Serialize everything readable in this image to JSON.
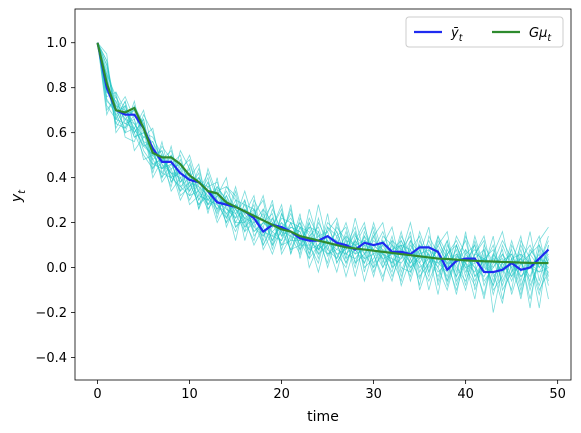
{
  "chart_data": {
    "type": "line",
    "xlabel": "time",
    "ylabel": "y_t",
    "ylabel_display": "y",
    "ylabel_sub": "t",
    "xlim": [
      -2.45,
      51.45
    ],
    "ylim": [
      -0.5,
      1.15
    ],
    "xticks": [
      0,
      10,
      20,
      30,
      40,
      50
    ],
    "yticks": [
      -0.4,
      -0.2,
      0.0,
      0.2,
      0.4,
      0.6,
      0.8,
      1.0
    ],
    "xtick_labels": [
      "0",
      "10",
      "20",
      "30",
      "40",
      "50"
    ],
    "ytick_labels": [
      "−0.4",
      "−0.2",
      "0.0",
      "0.2",
      "0.4",
      "0.6",
      "0.8",
      "1.0"
    ],
    "grid": false,
    "legend_position": "top-right",
    "x": [
      0,
      1,
      2,
      3,
      4,
      5,
      6,
      7,
      8,
      9,
      10,
      11,
      12,
      13,
      14,
      15,
      16,
      17,
      18,
      19,
      20,
      21,
      22,
      23,
      24,
      25,
      26,
      27,
      28,
      29,
      30,
      31,
      32,
      33,
      34,
      35,
      36,
      37,
      38,
      39,
      40,
      41,
      42,
      43,
      44,
      45,
      46,
      47,
      48,
      49
    ],
    "series": [
      {
        "name": "ȳ_t",
        "legend_main": "ȳ",
        "legend_sub": "t",
        "color": "#1f2bf0",
        "values": [
          1.0,
          0.8,
          0.7,
          0.68,
          0.68,
          0.62,
          0.53,
          0.47,
          0.47,
          0.42,
          0.39,
          0.38,
          0.34,
          0.29,
          0.28,
          0.27,
          0.25,
          0.22,
          0.16,
          0.19,
          0.18,
          0.16,
          0.13,
          0.12,
          0.12,
          0.14,
          0.11,
          0.1,
          0.08,
          0.11,
          0.1,
          0.11,
          0.07,
          0.07,
          0.06,
          0.09,
          0.09,
          0.07,
          -0.01,
          0.03,
          0.04,
          0.04,
          -0.02,
          -0.02,
          -0.01,
          0.02,
          -0.01,
          0.0,
          0.04,
          0.08
        ]
      },
      {
        "name": "Gμ_t",
        "legend_main": "Gμ",
        "legend_sub": "t",
        "color": "#2e8b2e",
        "values": [
          1.0,
          0.82,
          0.7,
          0.69,
          0.71,
          0.62,
          0.51,
          0.49,
          0.49,
          0.46,
          0.41,
          0.38,
          0.34,
          0.33,
          0.29,
          0.27,
          0.25,
          0.23,
          0.21,
          0.19,
          0.17,
          0.16,
          0.14,
          0.13,
          0.12,
          0.11,
          0.1,
          0.09,
          0.085,
          0.08,
          0.075,
          0.07,
          0.065,
          0.06,
          0.055,
          0.05,
          0.045,
          0.04,
          0.038,
          0.035,
          0.032,
          0.03,
          0.028,
          0.027,
          0.025,
          0.024,
          0.022,
          0.021,
          0.02,
          0.02
        ]
      }
    ],
    "sample_paths": {
      "color": "#22c4c4",
      "count": 20,
      "values": [
        [
          1.0,
          0.9,
          0.72,
          0.66,
          0.7,
          0.55,
          0.5,
          0.52,
          0.4,
          0.48,
          0.36,
          0.4,
          0.3,
          0.35,
          0.22,
          0.3,
          0.28,
          0.18,
          0.24,
          0.12,
          0.22,
          0.2,
          0.1,
          0.18,
          0.16,
          0.05,
          0.12,
          0.08,
          0.15,
          0.02,
          0.1,
          0.06,
          -0.02,
          0.12,
          0.04,
          -0.05,
          0.08,
          0.0,
          -0.1,
          0.05,
          0.02,
          -0.06,
          0.04,
          -0.08,
          0.03,
          0.06,
          -0.04,
          0.02,
          -0.02,
          0.05
        ],
        [
          1.0,
          0.75,
          0.68,
          0.72,
          0.6,
          0.66,
          0.48,
          0.42,
          0.5,
          0.38,
          0.42,
          0.3,
          0.38,
          0.25,
          0.32,
          0.2,
          0.28,
          0.26,
          0.14,
          0.22,
          0.1,
          0.18,
          0.16,
          0.06,
          0.2,
          0.12,
          0.04,
          0.16,
          0.02,
          0.14,
          0.08,
          0.0,
          0.1,
          0.06,
          -0.04,
          0.12,
          0.02,
          0.08,
          -0.06,
          0.1,
          0.0,
          -0.08,
          0.06,
          -0.12,
          0.02,
          -0.04,
          0.08,
          -0.1,
          0.04,
          0.0
        ],
        [
          1.0,
          0.85,
          0.62,
          0.7,
          0.64,
          0.58,
          0.56,
          0.44,
          0.46,
          0.5,
          0.34,
          0.44,
          0.28,
          0.36,
          0.3,
          0.22,
          0.34,
          0.2,
          0.26,
          0.08,
          0.24,
          0.14,
          0.2,
          0.1,
          0.02,
          0.18,
          0.14,
          0.02,
          0.12,
          0.2,
          0.0,
          0.14,
          0.1,
          -0.04,
          0.08,
          0.14,
          -0.02,
          0.12,
          0.04,
          -0.12,
          0.08,
          0.02,
          -0.14,
          0.06,
          0.0,
          -0.1,
          0.12,
          0.04,
          -0.18,
          0.1
        ],
        [
          1.0,
          0.78,
          0.74,
          0.6,
          0.72,
          0.64,
          0.42,
          0.56,
          0.38,
          0.44,
          0.48,
          0.32,
          0.4,
          0.22,
          0.36,
          0.3,
          0.16,
          0.3,
          0.22,
          0.28,
          0.14,
          0.26,
          0.08,
          0.22,
          0.14,
          0.16,
          0.22,
          0.06,
          0.1,
          0.04,
          0.2,
          0.06,
          0.02,
          0.16,
          0.0,
          0.06,
          0.18,
          -0.08,
          0.06,
          0.1,
          -0.04,
          0.14,
          0.0,
          -0.02,
          -0.16,
          0.1,
          0.02,
          -0.06,
          0.12,
          0.18
        ],
        [
          1.0,
          0.92,
          0.66,
          0.64,
          0.62,
          0.7,
          0.52,
          0.4,
          0.54,
          0.36,
          0.4,
          0.46,
          0.26,
          0.32,
          0.4,
          0.18,
          0.24,
          0.32,
          0.1,
          0.18,
          0.26,
          0.06,
          0.22,
          0.14,
          0.06,
          0.24,
          0.02,
          0.1,
          0.18,
          -0.02,
          0.14,
          0.2,
          0.0,
          0.04,
          0.16,
          -0.1,
          0.02,
          0.14,
          0.06,
          -0.04,
          0.16,
          -0.1,
          0.02,
          0.1,
          -0.06,
          0.04,
          -0.14,
          0.06,
          0.14,
          -0.04
        ],
        [
          1.0,
          0.7,
          0.76,
          0.68,
          0.58,
          0.6,
          0.58,
          0.5,
          0.42,
          0.34,
          0.46,
          0.34,
          0.42,
          0.3,
          0.2,
          0.34,
          0.18,
          0.24,
          0.3,
          0.1,
          0.16,
          0.24,
          0.12,
          0.04,
          0.22,
          0.08,
          0.18,
          0.12,
          0.0,
          0.16,
          0.06,
          -0.06,
          0.12,
          0.08,
          0.14,
          -0.02,
          0.06,
          -0.12,
          0.1,
          0.02,
          -0.1,
          0.06,
          0.12,
          -0.2,
          0.0,
          0.08,
          -0.08,
          0.02,
          -0.12,
          0.04
        ],
        [
          1.0,
          0.88,
          0.7,
          0.76,
          0.66,
          0.52,
          0.46,
          0.48,
          0.52,
          0.4,
          0.3,
          0.38,
          0.36,
          0.38,
          0.26,
          0.24,
          0.3,
          0.14,
          0.2,
          0.24,
          0.08,
          0.2,
          0.18,
          0.16,
          0.04,
          0.18,
          0.1,
          0.2,
          0.06,
          0.08,
          0.18,
          0.02,
          0.14,
          -0.02,
          0.1,
          0.04,
          0.12,
          0.02,
          -0.02,
          0.14,
          0.06,
          0.0,
          -0.12,
          0.06,
          0.16,
          -0.02,
          0.04,
          0.1,
          0.0,
          0.06
        ],
        [
          1.0,
          0.82,
          0.64,
          0.62,
          0.74,
          0.56,
          0.54,
          0.38,
          0.44,
          0.46,
          0.38,
          0.28,
          0.32,
          0.26,
          0.34,
          0.26,
          0.2,
          0.28,
          0.08,
          0.16,
          0.2,
          0.1,
          0.24,
          0.0,
          0.1,
          0.14,
          0.06,
          0.0,
          0.14,
          0.1,
          -0.04,
          0.12,
          0.06,
          0.1,
          -0.06,
          0.08,
          0.0,
          0.1,
          0.16,
          -0.06,
          0.02,
          0.1,
          -0.06,
          0.0,
          0.08,
          -0.12,
          0.02,
          -0.04,
          0.08,
          -0.08
        ],
        [
          1.0,
          0.76,
          0.78,
          0.58,
          0.56,
          0.68,
          0.6,
          0.46,
          0.36,
          0.52,
          0.44,
          0.26,
          0.44,
          0.32,
          0.24,
          0.16,
          0.26,
          0.22,
          0.32,
          0.14,
          0.12,
          0.28,
          0.04,
          0.2,
          0.08,
          0.2,
          0.16,
          0.04,
          0.22,
          0.06,
          0.12,
          0.08,
          -0.04,
          0.06,
          0.2,
          0.02,
          -0.06,
          0.04,
          0.12,
          -0.02,
          0.14,
          0.04,
          0.08,
          -0.1,
          -0.04,
          0.12,
          -0.02,
          0.16,
          -0.06,
          0.1
        ],
        [
          1.0,
          0.95,
          0.6,
          0.66,
          0.6,
          0.5,
          0.44,
          0.54,
          0.48,
          0.32,
          0.36,
          0.42,
          0.24,
          0.4,
          0.18,
          0.28,
          0.22,
          0.1,
          0.18,
          0.3,
          0.06,
          0.14,
          0.06,
          0.26,
          0.12,
          0.02,
          0.2,
          0.06,
          0.12,
          -0.06,
          0.08,
          0.16,
          0.04,
          -0.06,
          0.12,
          0.06,
          -0.04,
          0.14,
          0.0,
          0.08,
          -0.08,
          0.12,
          -0.02,
          0.06,
          -0.14,
          0.02,
          0.14,
          -0.08,
          0.02,
          0.12
        ],
        [
          1.0,
          0.8,
          0.72,
          0.7,
          0.68,
          0.62,
          0.4,
          0.48,
          0.42,
          0.42,
          0.5,
          0.36,
          0.28,
          0.34,
          0.36,
          0.32,
          0.12,
          0.26,
          0.16,
          0.06,
          0.18,
          0.22,
          0.14,
          0.08,
          0.28,
          0.1,
          -0.02,
          0.14,
          0.1,
          0.12,
          0.02,
          0.1,
          0.18,
          0.0,
          -0.02,
          0.16,
          0.04,
          -0.04,
          0.06,
          0.12,
          0.02,
          -0.14,
          0.1,
          0.02,
          0.04,
          -0.06,
          0.06,
          -0.18,
          0.1,
          0.02
        ],
        [
          1.0,
          0.72,
          0.66,
          0.74,
          0.52,
          0.58,
          0.62,
          0.42,
          0.4,
          0.36,
          0.32,
          0.4,
          0.34,
          0.2,
          0.28,
          0.12,
          0.3,
          0.16,
          0.2,
          0.18,
          0.28,
          0.06,
          0.18,
          0.12,
          -0.02,
          0.14,
          0.12,
          -0.04,
          0.1,
          0.18,
          0.06,
          -0.04,
          0.08,
          0.12,
          0.02,
          0.1,
          -0.1,
          0.06,
          0.02,
          -0.1,
          0.04,
          0.08,
          0.02,
          -0.08,
          0.1,
          0.0,
          -0.12,
          0.04,
          -0.1,
          -0.02
        ],
        [
          1.0,
          0.86,
          0.76,
          0.64,
          0.66,
          0.48,
          0.5,
          0.5,
          0.34,
          0.4,
          0.42,
          0.3,
          0.38,
          0.28,
          0.22,
          0.36,
          0.2,
          0.12,
          0.26,
          0.2,
          0.1,
          0.12,
          0.2,
          0.06,
          0.16,
          0.0,
          0.14,
          0.18,
          0.02,
          0.06,
          0.14,
          0.04,
          -0.06,
          0.1,
          0.08,
          -0.08,
          0.14,
          0.06,
          -0.06,
          0.04,
          0.12,
          -0.04,
          0.0,
          0.14,
          -0.1,
          -0.02,
          0.1,
          0.0,
          0.06,
          -0.14
        ],
        [
          1.0,
          0.74,
          0.7,
          0.68,
          0.7,
          0.64,
          0.46,
          0.44,
          0.5,
          0.44,
          0.28,
          0.32,
          0.3,
          0.36,
          0.3,
          0.18,
          0.22,
          0.26,
          0.12,
          0.26,
          0.16,
          0.08,
          0.1,
          0.2,
          0.08,
          0.12,
          0.06,
          0.08,
          0.16,
          0.0,
          0.04,
          0.12,
          0.0,
          0.14,
          0.06,
          0.02,
          0.1,
          -0.06,
          0.08,
          0.0,
          -0.06,
          0.06,
          0.14,
          -0.04,
          0.02,
          0.06,
          -0.06,
          0.08,
          0.02,
          0.14
        ],
        [
          1.0,
          0.9,
          0.68,
          0.6,
          0.62,
          0.54,
          0.56,
          0.48,
          0.44,
          0.3,
          0.38,
          0.36,
          0.32,
          0.24,
          0.32,
          0.24,
          0.16,
          0.2,
          0.22,
          0.12,
          0.2,
          0.16,
          0.08,
          0.14,
          0.18,
          0.06,
          0.08,
          0.14,
          -0.04,
          0.12,
          0.1,
          0.06,
          0.12,
          -0.08,
          0.04,
          0.1,
          0.06,
          0.0,
          0.12,
          -0.08,
          0.06,
          0.1,
          -0.08,
          0.02,
          0.12,
          0.04,
          -0.1,
          0.06,
          0.1,
          -0.06
        ],
        [
          1.0,
          0.84,
          0.64,
          0.72,
          0.58,
          0.6,
          0.52,
          0.4,
          0.46,
          0.38,
          0.44,
          0.26,
          0.36,
          0.3,
          0.26,
          0.22,
          0.26,
          0.18,
          0.14,
          0.22,
          0.14,
          0.18,
          0.16,
          0.04,
          0.1,
          0.16,
          0.02,
          0.1,
          0.06,
          0.14,
          -0.02,
          0.08,
          0.06,
          0.04,
          0.12,
          -0.04,
          0.02,
          0.08,
          -0.08,
          0.06,
          0.02,
          -0.02,
          0.08,
          -0.06,
          0.06,
          0.0,
          0.04,
          -0.14,
          0.04,
          0.02
        ],
        [
          1.0,
          0.78,
          0.74,
          0.66,
          0.64,
          0.56,
          0.48,
          0.52,
          0.38,
          0.46,
          0.32,
          0.34,
          0.26,
          0.32,
          0.28,
          0.26,
          0.18,
          0.22,
          0.18,
          0.1,
          0.24,
          0.12,
          0.12,
          0.18,
          0.06,
          0.1,
          0.16,
          0.04,
          0.08,
          0.02,
          0.16,
          0.0,
          0.08,
          0.1,
          -0.02,
          0.06,
          0.08,
          0.04,
          -0.04,
          0.1,
          -0.02,
          0.06,
          0.04,
          0.08,
          -0.08,
          0.04,
          0.06,
          0.02,
          -0.08,
          0.04
        ],
        [
          1.0,
          0.92,
          0.7,
          0.62,
          0.68,
          0.6,
          0.54,
          0.46,
          0.42,
          0.4,
          0.34,
          0.4,
          0.3,
          0.28,
          0.24,
          0.28,
          0.24,
          0.16,
          0.2,
          0.16,
          0.12,
          0.2,
          0.1,
          0.1,
          0.14,
          0.08,
          0.04,
          0.12,
          0.1,
          0.04,
          0.06,
          0.1,
          0.02,
          0.08,
          0.02,
          0.08,
          -0.02,
          0.1,
          0.02,
          0.02,
          0.08,
          -0.04,
          0.04,
          0.0,
          0.06,
          -0.04,
          0.02,
          0.06,
          0.0,
          0.08
        ],
        [
          1.0,
          0.68,
          0.78,
          0.7,
          0.62,
          0.54,
          0.5,
          0.44,
          0.48,
          0.34,
          0.38,
          0.28,
          0.34,
          0.26,
          0.3,
          0.2,
          0.2,
          0.24,
          0.16,
          0.14,
          0.18,
          0.08,
          0.18,
          0.08,
          0.1,
          0.06,
          0.1,
          0.02,
          0.12,
          0.06,
          0.0,
          0.06,
          0.04,
          0.02,
          0.08,
          0.0,
          0.04,
          0.02,
          0.06,
          -0.04,
          0.04,
          0.0,
          -0.04,
          0.04,
          -0.02,
          0.02,
          -0.04,
          0.0,
          0.02,
          -0.02
        ],
        [
          1.0,
          0.86,
          0.66,
          0.74,
          0.6,
          0.66,
          0.44,
          0.5,
          0.4,
          0.42,
          0.4,
          0.34,
          0.28,
          0.3,
          0.2,
          0.26,
          0.22,
          0.2,
          0.1,
          0.2,
          0.16,
          0.14,
          0.12,
          0.12,
          0.08,
          0.12,
          0.08,
          0.06,
          0.04,
          0.1,
          0.08,
          0.04,
          0.06,
          0.06,
          0.0,
          0.04,
          0.06,
          -0.02,
          0.02,
          0.06,
          0.0,
          0.02,
          0.04,
          -0.02,
          0.0,
          0.02,
          0.04,
          0.0,
          -0.02,
          0.0
        ]
      ]
    }
  }
}
